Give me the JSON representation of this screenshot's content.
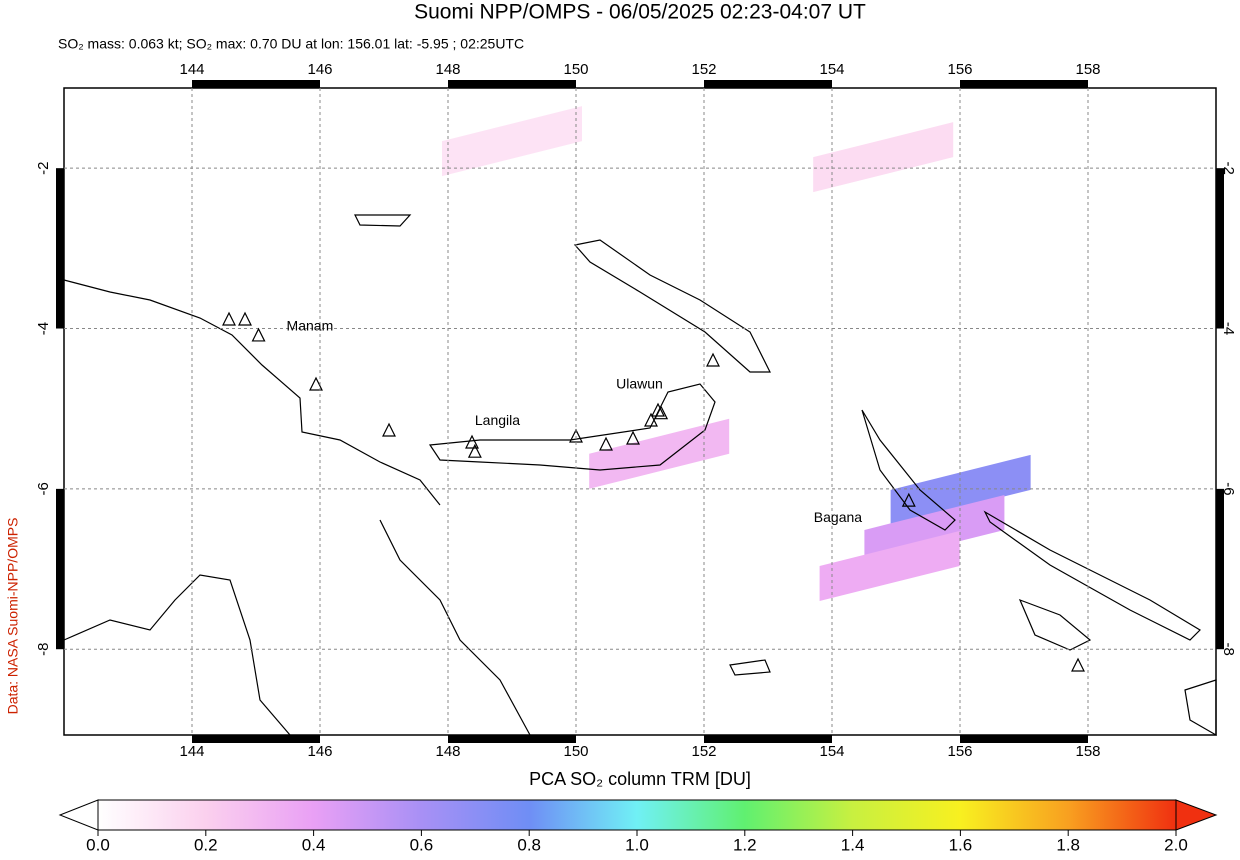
{
  "title": "Suomi NPP/OMPS - 06/05/2025 02:23-04:07 UT",
  "subtitle": "SO₂ mass: 0.063 kt; SO₂ max: 0.70 DU at lon: 156.01 lat: -5.95 ; 02:25UTC",
  "credit": "Data: NASA Suomi-NPP/OMPS",
  "map": {
    "xlim": [
      142,
      160
    ],
    "ylim": [
      -9.07,
      -1
    ],
    "xticks": [
      144,
      146,
      148,
      150,
      152,
      154,
      156,
      158
    ],
    "yticks": [
      -2,
      -4,
      -6,
      -8
    ],
    "grid": true,
    "volcanoes": [
      {
        "name": "Manam",
        "lon": 145.04,
        "lat": -4.08
      },
      {
        "name": "Langila",
        "lon": 148.42,
        "lat": -5.53
      },
      {
        "name": "Ulawun",
        "lon": 151.33,
        "lat": -5.05
      },
      {
        "name": "Bagana",
        "lon": 155.2,
        "lat": -6.14
      }
    ],
    "so2_cells": [
      {
        "lon": 156.01,
        "lat": -5.95,
        "value": 0.7
      },
      {
        "lon": 155.6,
        "lat": -6.45,
        "value": 0.45
      },
      {
        "lon": 154.9,
        "lat": -6.9,
        "value": 0.35
      },
      {
        "lon": 151.3,
        "lat": -5.5,
        "value": 0.3
      },
      {
        "lon": 154.8,
        "lat": -1.8,
        "value": 0.15
      },
      {
        "lon": 149.0,
        "lat": -1.6,
        "value": 0.12
      }
    ]
  },
  "colorbar": {
    "label": "PCA SO₂ column TRM [DU]",
    "clim": [
      0,
      2
    ],
    "colormap": [
      "#ffffff",
      "#fbd0ee",
      "#e9a0f5",
      "#a890f5",
      "#6f8ef5",
      "#70f0f5",
      "#60f070",
      "#c8f040",
      "#f8f020",
      "#f8a020",
      "#f03010"
    ],
    "ticks": [
      {
        "value": 0,
        "label": "0.0"
      },
      0.2,
      0.4,
      0.6,
      0.8,
      {
        "value": 1,
        "label": "1.0"
      },
      1.2,
      1.4,
      1.6,
      1.8,
      {
        "value": 2,
        "label": "2.0"
      }
    ]
  }
}
